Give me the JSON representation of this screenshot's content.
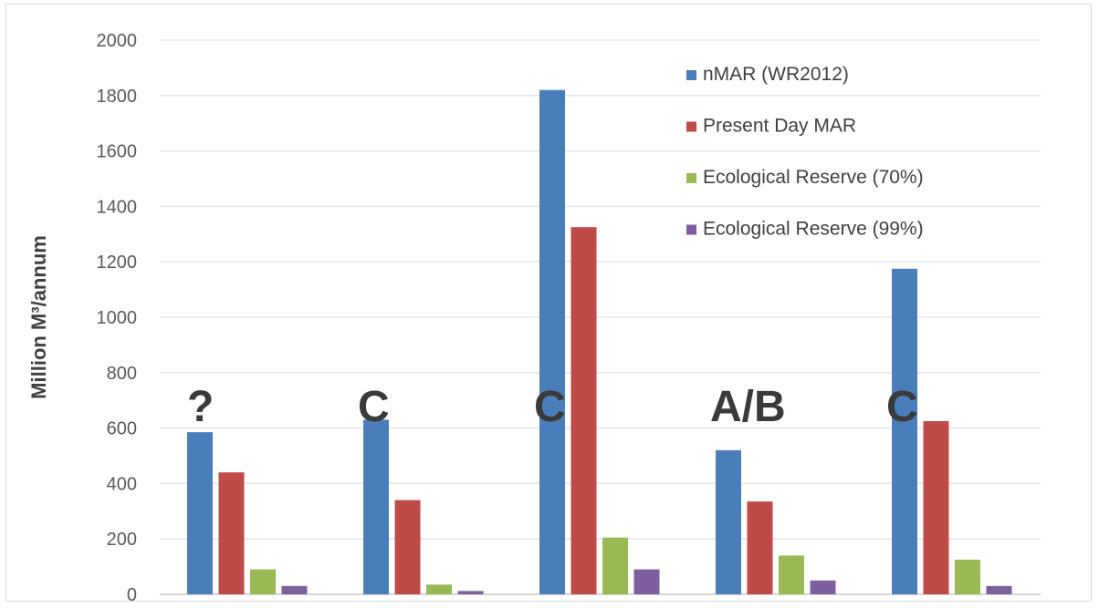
{
  "chart_data": {
    "type": "bar",
    "ylabel": "Million M³/annum",
    "ylim": [
      0,
      2000
    ],
    "yticks": [
      0,
      200,
      400,
      600,
      800,
      1000,
      1200,
      1400,
      1600,
      1800,
      2000
    ],
    "grid": true,
    "legend_position": "top-right",
    "categories": [
      "",
      "",
      "",
      "",
      ""
    ],
    "group_annotations": [
      "?",
      "C",
      "C",
      "A/B",
      "C"
    ],
    "series": [
      {
        "name": "nMAR (WR2012)",
        "color": "#4a7ebb",
        "values": [
          585,
          630,
          1820,
          520,
          1175
        ]
      },
      {
        "name": "Present Day MAR",
        "color": "#be4b48",
        "values": [
          440,
          340,
          1325,
          335,
          625
        ]
      },
      {
        "name": "Ecological Reserve (70%)",
        "color": "#98b954",
        "values": [
          90,
          35,
          205,
          140,
          125
        ]
      },
      {
        "name": "Ecological Reserve (99%)",
        "color": "#7d5fa0",
        "values": [
          30,
          12,
          90,
          50,
          30
        ]
      }
    ]
  }
}
